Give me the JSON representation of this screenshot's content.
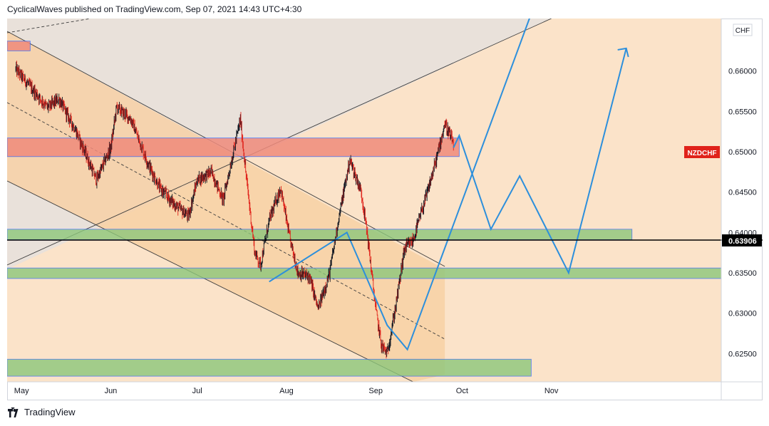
{
  "header": {
    "text": "CyclicalWaves published on TradingView.com, Sep 07, 2021 14:43 UTC+4:30"
  },
  "footer": {
    "brand": "TradingView"
  },
  "colors": {
    "bg": "#fbe3c9",
    "channel_fill": "#f7cfa3",
    "upper_fill": "#e7e0dc",
    "green_zone": "#8dc77b",
    "red_zone": "#f08b7b",
    "blue_path": "#2c8fdc",
    "line": "#3c3c3c",
    "bull": "#131722",
    "bear": "#e0221a"
  },
  "chart_data": {
    "type": "candlestick",
    "symbol_label": "NZDCHF",
    "currency": "CHF",
    "current_price_label": "0.63906",
    "y_ticks": [
      "0.66000",
      "0.65500",
      "0.65000",
      "0.64500",
      "0.64000",
      "0.63500",
      "0.63000",
      "0.62500"
    ],
    "x_ticks": [
      "May",
      "Jun",
      "Jul",
      "Aug",
      "Sep",
      "Oct",
      "Nov"
    ],
    "ylim": [
      0.6215,
      0.6665
    ],
    "price_path": [
      [
        "2021-04-26",
        0.6615
      ],
      [
        "2021-05-03",
        0.6585
      ],
      [
        "2021-05-10",
        0.6555
      ],
      [
        "2021-05-14",
        0.6565
      ],
      [
        "2021-05-20",
        0.6525
      ],
      [
        "2021-05-27",
        0.6465
      ],
      [
        "2021-06-01",
        0.6505
      ],
      [
        "2021-06-03",
        0.6555
      ],
      [
        "2021-06-08",
        0.654
      ],
      [
        "2021-06-14",
        0.6485
      ],
      [
        "2021-06-18",
        0.6455
      ],
      [
        "2021-06-23",
        0.6435
      ],
      [
        "2021-06-28",
        0.642
      ],
      [
        "2021-07-01",
        0.6465
      ],
      [
        "2021-07-06",
        0.6475
      ],
      [
        "2021-07-10",
        0.644
      ],
      [
        "2021-07-16",
        0.654
      ],
      [
        "2021-07-18",
        0.647
      ],
      [
        "2021-07-21",
        0.6375
      ],
      [
        "2021-07-23",
        0.636
      ],
      [
        "2021-07-26",
        0.6415
      ],
      [
        "2021-07-30",
        0.6455
      ],
      [
        "2021-08-02",
        0.6395
      ],
      [
        "2021-08-05",
        0.635
      ],
      [
        "2021-08-09",
        0.6345
      ],
      [
        "2021-08-12",
        0.6305
      ],
      [
        "2021-08-16",
        0.635
      ],
      [
        "2021-08-19",
        0.6415
      ],
      [
        "2021-08-23",
        0.649
      ],
      [
        "2021-08-27",
        0.645
      ],
      [
        "2021-08-29",
        0.64
      ],
      [
        "2021-09-01",
        0.6305
      ],
      [
        "2021-09-03",
        0.626
      ],
      [
        "2021-09-05",
        0.625
      ],
      [
        "2021-09-08",
        0.631
      ],
      [
        "2021-09-11",
        0.638
      ],
      [
        "2021-09-14",
        0.639
      ],
      [
        "2021-09-16",
        0.6415
      ],
      [
        "2021-09-19",
        0.645
      ],
      [
        "2021-09-22",
        0.649
      ],
      [
        "2021-09-25",
        0.6535
      ],
      [
        "2021-09-28",
        0.651
      ]
    ],
    "zones": [
      {
        "kind": "red",
        "from": "2021-04-26",
        "to": "2021-09-30",
        "low": 0.6494,
        "high": 0.6517
      },
      {
        "kind": "red",
        "from": "2021-04-26",
        "to": "2021-05-04",
        "low": 0.6625,
        "high": 0.6637
      },
      {
        "kind": "green",
        "from": "2021-04-26",
        "to": "2021-11-29",
        "low": 0.6391,
        "high": 0.6404
      },
      {
        "kind": "green",
        "from": "2021-04-26",
        "to": "2021-12-30",
        "low": 0.6343,
        "high": 0.6356
      },
      {
        "kind": "green",
        "from": "2021-04-26",
        "to": "2021-10-25",
        "low": 0.6222,
        "high": 0.6243
      }
    ],
    "forecast_paths": [
      [
        [
          "2021-07-26",
          0.6339
        ],
        [
          "2021-08-22",
          0.64
        ],
        [
          "2021-09-05",
          0.6285
        ],
        [
          "2021-09-12",
          0.6255
        ],
        [
          "2021-10-28",
          0.67
        ]
      ],
      [
        [
          "2021-09-28",
          0.6505
        ],
        [
          "2021-09-30",
          0.652
        ],
        [
          "2021-10-11",
          0.6404
        ],
        [
          "2021-10-21",
          0.647
        ],
        [
          "2021-11-07",
          0.635
        ],
        [
          "2021-11-27",
          0.6628
        ]
      ]
    ]
  }
}
